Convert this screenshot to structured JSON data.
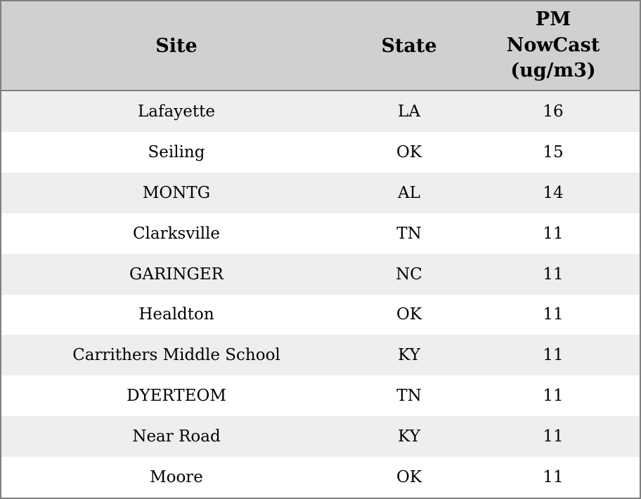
{
  "table": {
    "columns": [
      {
        "key": "site",
        "label": "Site"
      },
      {
        "key": "state",
        "label": "State"
      },
      {
        "key": "pm",
        "label": "PM NowCast (ug/m3)"
      }
    ],
    "rows": [
      {
        "site": "Lafayette",
        "state": "LA",
        "pm": "16"
      },
      {
        "site": "Seiling",
        "state": "OK",
        "pm": "15"
      },
      {
        "site": "MONTG",
        "state": "AL",
        "pm": "14"
      },
      {
        "site": "Clarksville",
        "state": "TN",
        "pm": "11"
      },
      {
        "site": "GARINGER",
        "state": "NC",
        "pm": "11"
      },
      {
        "site": "Healdton",
        "state": "OK",
        "pm": "11"
      },
      {
        "site": "Carrithers Middle School",
        "state": "KY",
        "pm": "11"
      },
      {
        "site": "DYERTEOM",
        "state": "TN",
        "pm": "11"
      },
      {
        "site": "Near Road",
        "state": "KY",
        "pm": "11"
      },
      {
        "site": "Moore",
        "state": "OK",
        "pm": "11"
      }
    ]
  },
  "chart_data": {
    "type": "table",
    "title": "",
    "columns": [
      "Site",
      "State",
      "PM NowCast (ug/m3)"
    ],
    "rows": [
      [
        "Lafayette",
        "LA",
        16
      ],
      [
        "Seiling",
        "OK",
        15
      ],
      [
        "MONTG",
        "AL",
        14
      ],
      [
        "Clarksville",
        "TN",
        11
      ],
      [
        "GARINGER",
        "NC",
        11
      ],
      [
        "Healdton",
        "OK",
        11
      ],
      [
        "Carrithers Middle School",
        "KY",
        11
      ],
      [
        "DYERTEOM",
        "TN",
        11
      ],
      [
        "Near Road",
        "KY",
        11
      ],
      [
        "Moore",
        "OK",
        11
      ]
    ],
    "layout_hints": {
      "zebra_striping": true,
      "header_align": "center",
      "cell_align": "center"
    }
  },
  "colors": {
    "header_bg": "#d0d0d0",
    "row_stripe": "#eeeeee",
    "row_plain": "#ffffff",
    "border": "#808080",
    "text": "#000000"
  }
}
